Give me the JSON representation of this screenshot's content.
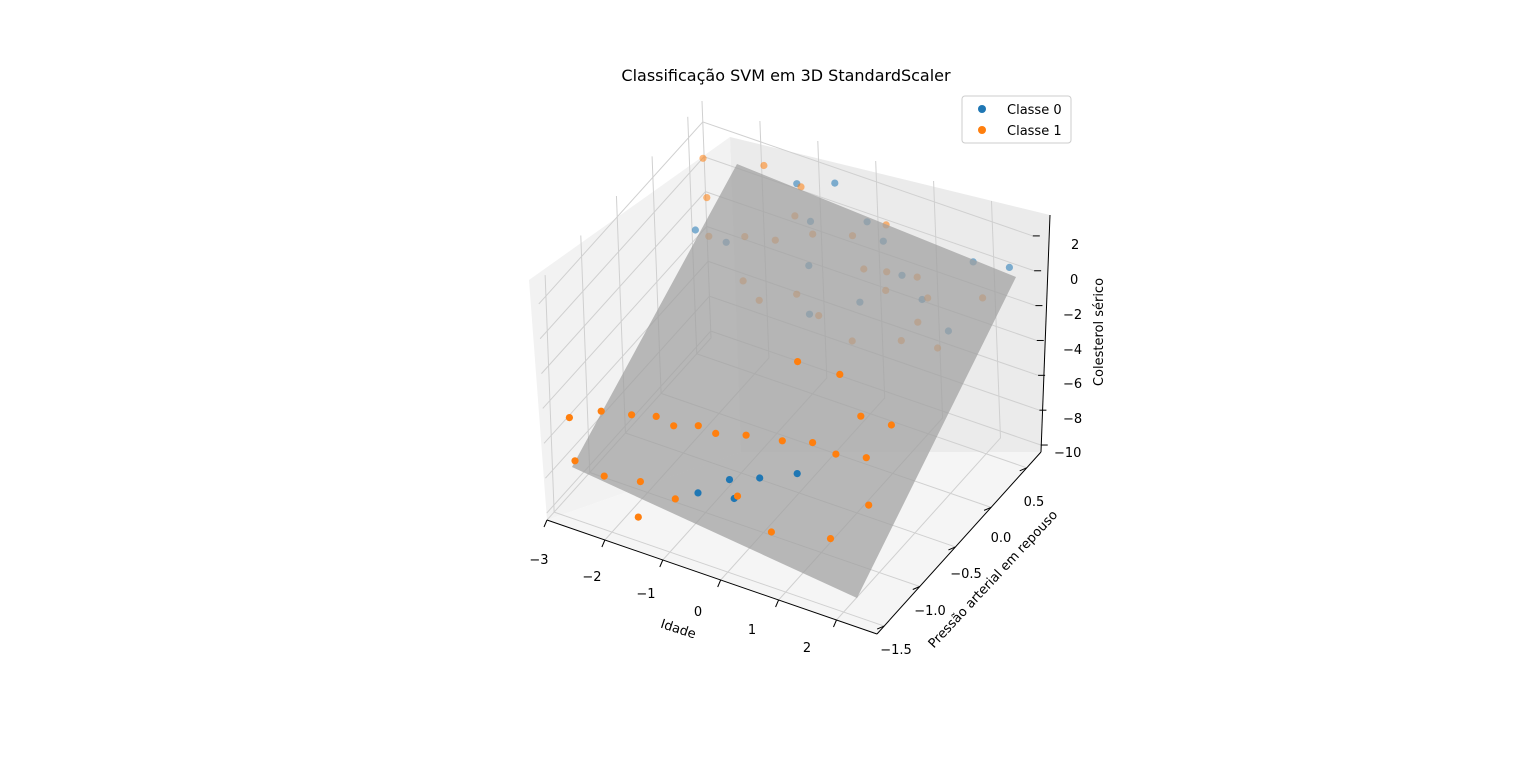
{
  "chart_data": {
    "type": "scatter",
    "projection": "3d",
    "title": "Classificação SVM em 3D StandardScaler",
    "xlabel": "Idade",
    "ylabel": "Pressão arterial em repouso",
    "zlabel": "Colesterol sérico",
    "xlim": [
      -3,
      2.7
    ],
    "ylim": [
      -1.6,
      0.7
    ],
    "zlim": [
      -10.4,
      3.2
    ],
    "xticks": [
      "−3",
      "−2",
      "−1",
      "0",
      "1",
      "2"
    ],
    "yticks": [
      "−1.5",
      "−1.0",
      "−0.5",
      "0.0",
      "0.5"
    ],
    "zticks": [
      "2",
      "0",
      "−2",
      "−4",
      "−6",
      "−8",
      "−10"
    ],
    "legend": {
      "position": "top-right",
      "entries": [
        "Classe 0",
        "Classe 1"
      ]
    },
    "grid": true,
    "colors": {
      "class0": "#1f77b4",
      "class1": "#ff7f0e",
      "plane": "#a0a0a0",
      "pane": "#f2f2f2"
    },
    "decision_plane": "gray semi-transparent separating plane",
    "series": [
      {
        "name": "Classe 0",
        "points": [
          [
            -1.9,
            -0.3,
            1.6
          ],
          [
            -1.2,
            0.55,
            1.2
          ],
          [
            -0.4,
            0.1,
            2.0
          ],
          [
            0.8,
            -0.2,
            0.1
          ],
          [
            1.5,
            0.1,
            -0.3
          ],
          [
            -0.6,
            0.6,
            1.7
          ],
          [
            0.2,
            0.4,
            1.3
          ],
          [
            0.6,
            0.3,
            1.1
          ],
          [
            1.1,
            0.15,
            0.4
          ],
          [
            2.2,
            -0.1,
            -0.4
          ],
          [
            -1.5,
            -0.2,
            0.9
          ],
          [
            -0.2,
            -0.1,
            0.6
          ],
          [
            1.9,
            0.5,
            0.5
          ],
          [
            2.4,
            0.6,
            0.3
          ],
          [
            0.3,
            -0.5,
            0.2
          ],
          [
            -0.6,
            -1.4,
            -7.0
          ],
          [
            -0.3,
            -1.2,
            -6.8
          ],
          [
            0.1,
            -1.1,
            -6.7
          ],
          [
            -0.1,
            -1.3,
            -7.2
          ],
          [
            0.5,
            -0.9,
            -6.9
          ]
        ]
      },
      {
        "name": "Classe 1",
        "points": [
          [
            -2.5,
            0.3,
            2.3
          ],
          [
            -1.7,
            0.5,
            1.9
          ],
          [
            -1.0,
            0.45,
            1.7
          ],
          [
            -0.8,
            0.2,
            1.4
          ],
          [
            0.4,
            0.5,
            0.9
          ],
          [
            0.9,
            0.1,
            0.6
          ],
          [
            1.3,
            0.2,
            0.3
          ],
          [
            1.8,
            -0.2,
            0.1
          ],
          [
            2.3,
            0.3,
            -0.2
          ],
          [
            -1.3,
            -0.1,
            1.0
          ],
          [
            -0.9,
            0.0,
            0.8
          ],
          [
            -0.5,
            0.2,
            0.7
          ],
          [
            0.0,
            0.35,
            0.5
          ],
          [
            0.5,
            0.1,
            0.3
          ],
          [
            1.0,
            0.0,
            0.1
          ],
          [
            1.6,
            0.1,
            -0.1
          ],
          [
            -2.2,
            0.1,
            1.3
          ],
          [
            -1.8,
            -0.2,
            0.9
          ],
          [
            -0.7,
            -0.4,
            -0.6
          ],
          [
            0.2,
            -0.3,
            -0.9
          ],
          [
            0.9,
            -0.4,
            -1.1
          ],
          [
            1.5,
            -0.2,
            -1.3
          ],
          [
            2.0,
            -0.1,
            -1.6
          ],
          [
            -1.1,
            -0.3,
            -0.4
          ],
          [
            -0.3,
            -0.2,
            -0.7
          ],
          [
            -2.8,
            -1.4,
            -5.2
          ],
          [
            -2.5,
            -1.2,
            -5.4
          ],
          [
            -2.1,
            -1.1,
            -5.6
          ],
          [
            -1.8,
            -1.0,
            -5.8
          ],
          [
            -1.5,
            -1.0,
            -6.0
          ],
          [
            -1.2,
            -0.9,
            -6.1
          ],
          [
            -0.9,
            -0.9,
            -6.2
          ],
          [
            -0.5,
            -0.8,
            -6.3
          ],
          [
            0.0,
            -0.7,
            -6.5
          ],
          [
            0.4,
            -0.6,
            -6.6
          ],
          [
            0.8,
            -0.6,
            -6.8
          ],
          [
            1.2,
            -0.5,
            -7.0
          ],
          [
            -2.6,
            -1.5,
            -7.0
          ],
          [
            -2.1,
            -1.5,
            -7.3
          ],
          [
            -1.6,
            -1.4,
            -7.5
          ],
          [
            -1.0,
            -1.4,
            -7.8
          ],
          [
            -0.3,
            -1.1,
            -8.2
          ],
          [
            0.4,
            -1.2,
            -9.0
          ],
          [
            1.3,
            -1.1,
            -8.8
          ],
          [
            1.6,
            -0.8,
            -7.9
          ],
          [
            -0.2,
            -0.3,
            -4.0
          ],
          [
            0.4,
            -0.2,
            -4.5
          ],
          [
            1.0,
            -0.4,
            -5.3
          ],
          [
            1.4,
            -0.3,
            -5.8
          ],
          [
            -1.4,
            -1.6,
            -8.4
          ]
        ]
      }
    ]
  }
}
